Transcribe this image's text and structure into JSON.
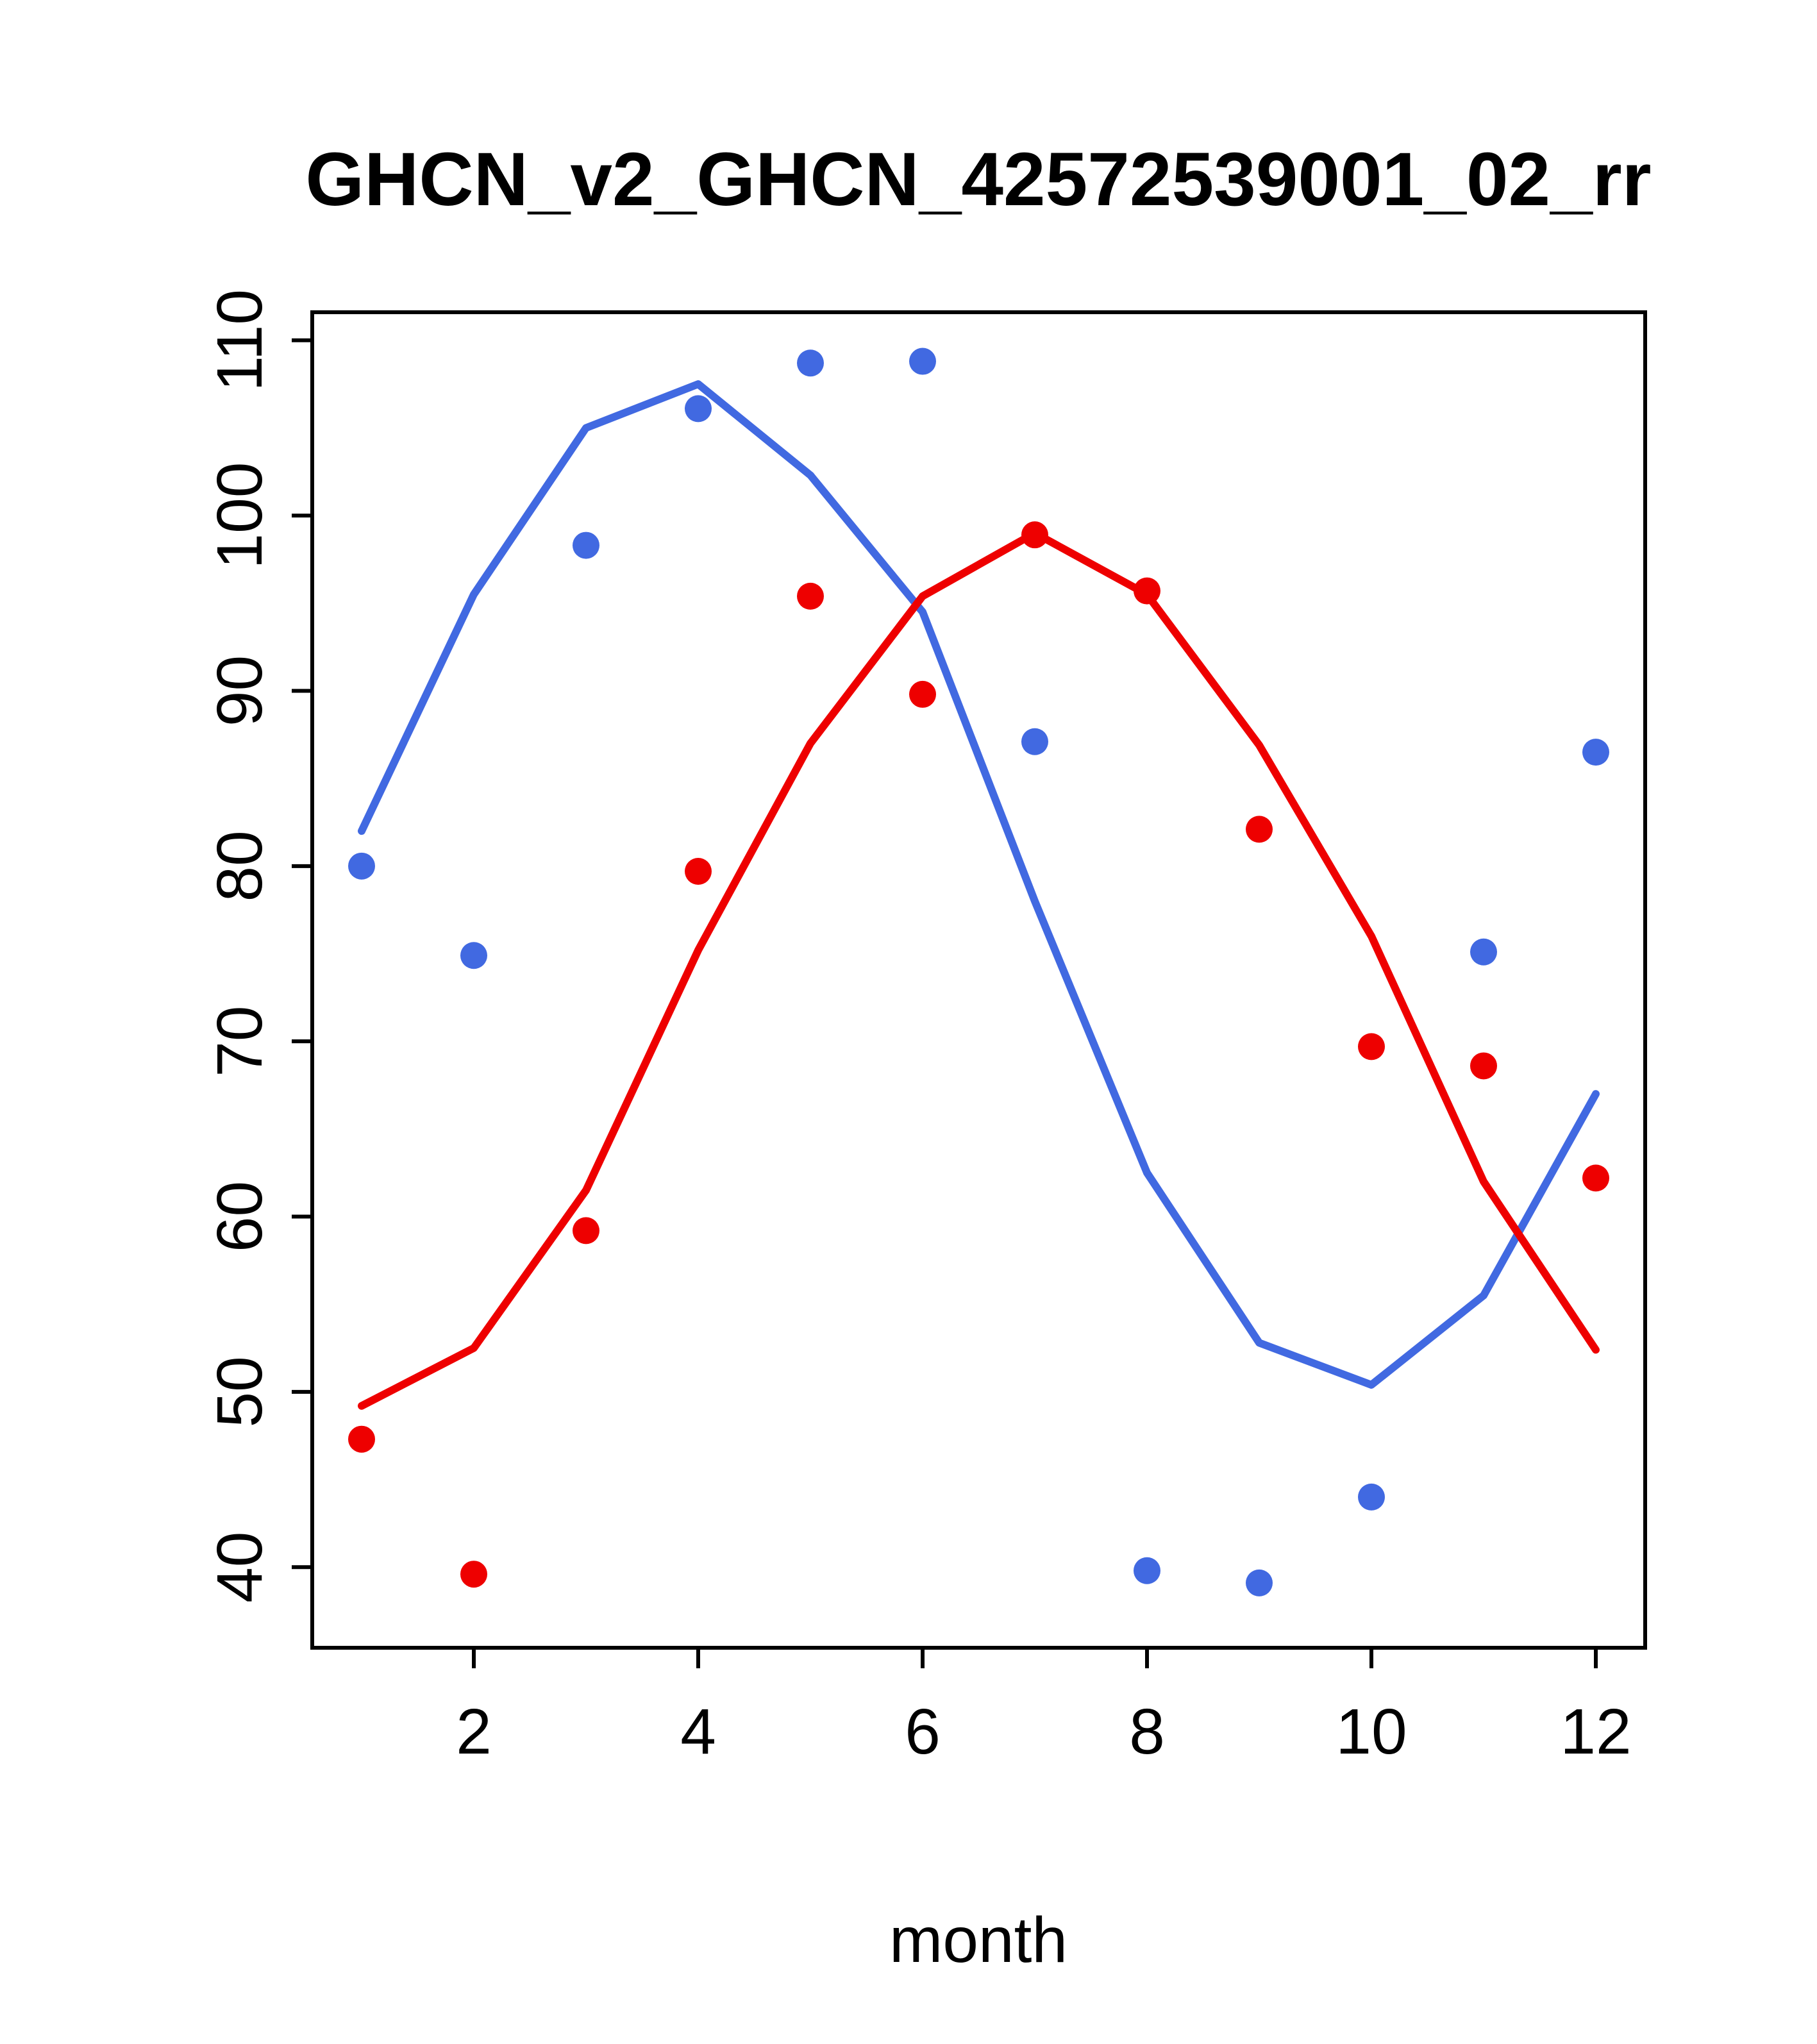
{
  "figure": {
    "background": "#ffffff"
  },
  "chart_data": {
    "type": "line",
    "title": "GHCN_v2_GHCN_42572539001_02_rr",
    "xlabel": "month",
    "ylabel": "",
    "xlim": [
      0.56,
      12.44
    ],
    "ylim": [
      35.4,
      111.6
    ],
    "x_ticks": [
      2,
      4,
      6,
      8,
      10,
      12
    ],
    "y_ticks": [
      40,
      50,
      60,
      70,
      80,
      90,
      100,
      110
    ],
    "grid": false,
    "legend": "none",
    "x": [
      1,
      2,
      3,
      4,
      5,
      6,
      7,
      8,
      9,
      10,
      11,
      12
    ],
    "series": [
      {
        "name": "blue-line",
        "kind": "line",
        "color": "#4169E1",
        "values": [
          82,
          95.5,
          105,
          107.5,
          102.3,
          94.5,
          78,
          62.5,
          52.8,
          50.4,
          55.5,
          67
        ]
      },
      {
        "name": "red-line",
        "kind": "line",
        "color": "#EE0000",
        "values": [
          49.2,
          52.5,
          61.5,
          75.2,
          87,
          95.4,
          99,
          95.5,
          86.9,
          76,
          62,
          52.4
        ]
      },
      {
        "name": "blue-points",
        "kind": "points",
        "color": "#4169E1",
        "values": [
          80,
          74.9,
          98.3,
          106.1,
          108.7,
          108.8,
          87.1,
          39.8,
          39.1,
          44,
          75.1,
          86.5
        ]
      },
      {
        "name": "red-points",
        "kind": "points",
        "color": "#EE0000",
        "values": [
          47.3,
          39.6,
          59.2,
          79.7,
          95.4,
          89.8,
          98.9,
          95.7,
          82.1,
          69.7,
          68.6,
          62.2
        ]
      }
    ]
  }
}
